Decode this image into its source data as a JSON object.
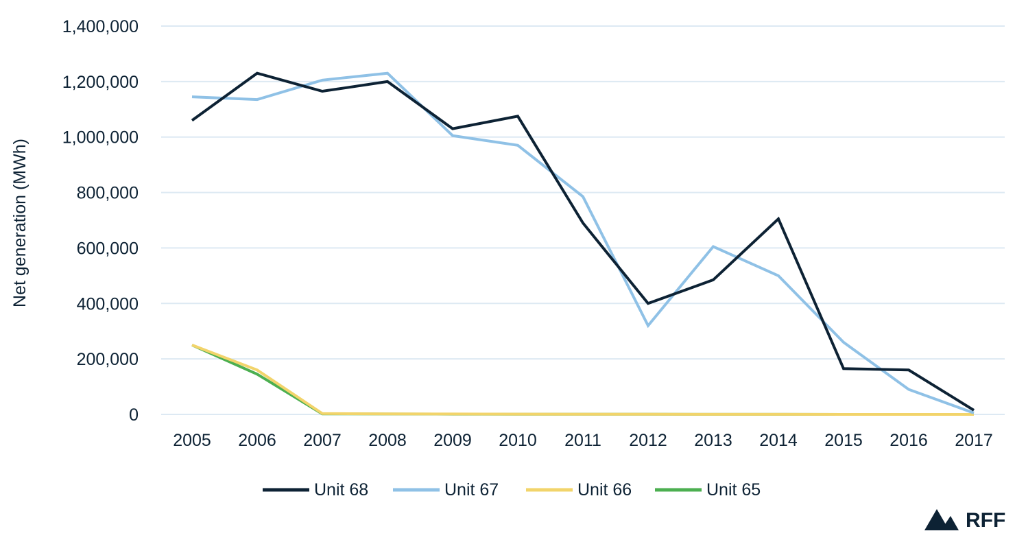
{
  "chart_data": {
    "type": "line",
    "title": "",
    "xlabel": "",
    "ylabel": "Net generation (MWh)",
    "x": [
      "2005",
      "2006",
      "2007",
      "2008",
      "2009",
      "2010",
      "2011",
      "2012",
      "2013",
      "2014",
      "2015",
      "2016",
      "2017"
    ],
    "ylim": [
      0,
      1400000
    ],
    "yticks": [
      0,
      200000,
      400000,
      600000,
      800000,
      1000000,
      1200000,
      1400000
    ],
    "ytick_labels": [
      "0",
      "200,000",
      "400,000",
      "600,000",
      "800,000",
      "1,000,000",
      "1,200,000",
      "1,400,000"
    ],
    "grid": true,
    "legend_position": "bottom",
    "series": [
      {
        "name": "Unit 68",
        "color": "#0d2234",
        "values": [
          1060000,
          1230000,
          1165000,
          1200000,
          1030000,
          1075000,
          690000,
          400000,
          485000,
          705000,
          165000,
          160000,
          15000
        ]
      },
      {
        "name": "Unit 67",
        "color": "#8fc1e6",
        "values": [
          1145000,
          1135000,
          1205000,
          1230000,
          1005000,
          970000,
          785000,
          320000,
          605000,
          500000,
          260000,
          90000,
          5000
        ]
      },
      {
        "name": "Unit 66",
        "color": "#f2d46b",
        "values": [
          250000,
          160000,
          3000,
          2000,
          1500,
          1000,
          800,
          500,
          300,
          200,
          100,
          0,
          0
        ]
      },
      {
        "name": "Unit 65",
        "color": "#4caf50",
        "values": [
          250000,
          145000,
          2000,
          1500,
          1000,
          800,
          600,
          400,
          300,
          200,
          100,
          0,
          0
        ]
      }
    ]
  },
  "logo": {
    "text": "RFF",
    "icon": "mountain-icon",
    "color": "#0d2234"
  },
  "colors": {
    "grid": "#dde9f3"
  }
}
